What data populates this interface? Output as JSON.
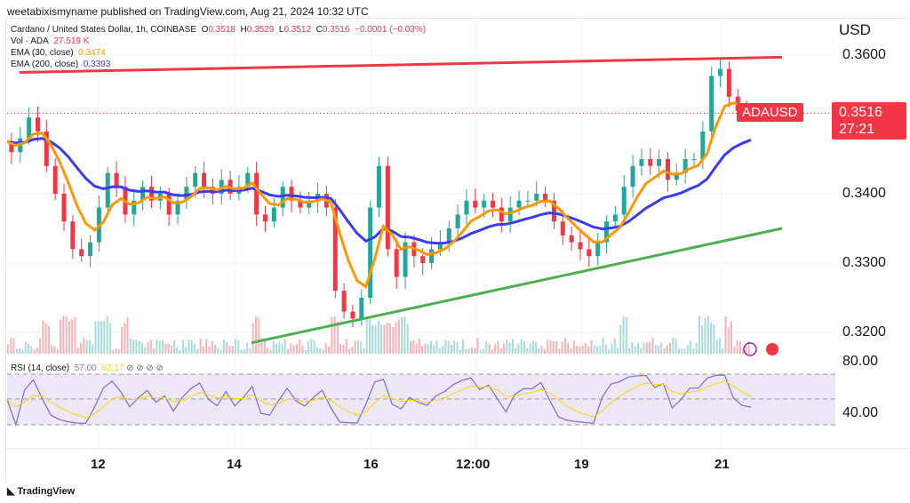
{
  "header": {
    "published": "weetabixismyname published on TradingView.com, Aug 21, 2024 10:32 UTC"
  },
  "legend": {
    "symbol": "Cardano / United States Dollar, 1h, COINBASE",
    "o_label": "O",
    "o": "0.3518",
    "h_label": "H",
    "h": "0.3529",
    "l_label": "L",
    "l": "0.3512",
    "c_label": "C",
    "c": "0.3516",
    "change": "−0.0001 (−0.03%)",
    "vol_label": "Vol · ADA",
    "vol": "27.519 K",
    "ema30_label": "EMA (30, close)",
    "ema30": "0.3474",
    "ema200_label": "EMA (200, close)",
    "ema200": "0.3393"
  },
  "rsi": {
    "label": "RSI (14, close)",
    "value": "57.00",
    "ma": "62.17",
    "levels": [
      "80.00",
      "40.00"
    ]
  },
  "axis": {
    "currency": "USD",
    "price_ticks": [
      "0.3600",
      "0.3400",
      "0.3300",
      "0.3200"
    ],
    "time_ticks": [
      "12",
      "14",
      "16",
      "12:00",
      "19",
      "21"
    ]
  },
  "last": {
    "symbol": "ADAUSD",
    "price": "0.3516",
    "countdown": "27:21"
  },
  "colors": {
    "up": "#26a69a",
    "down": "#f23645",
    "ema30": "#ff9800",
    "ema200": "#3b3bf0",
    "resistance": "#f23645",
    "support": "#4caf50",
    "rsi": "#8e6fd6",
    "rsi_ma": "#f5d800"
  },
  "brand": "TradingView",
  "chart_data": {
    "type": "candlestick",
    "ylim": [
      0.3185,
      0.3615
    ],
    "closes": [
      0.3475,
      0.346,
      0.348,
      0.351,
      0.349,
      0.344,
      0.34,
      0.336,
      0.332,
      0.331,
      0.333,
      0.338,
      0.343,
      0.341,
      0.337,
      0.339,
      0.341,
      0.339,
      0.34,
      0.337,
      0.339,
      0.341,
      0.343,
      0.341,
      0.34,
      0.342,
      0.34,
      0.341,
      0.343,
      0.337,
      0.336,
      0.338,
      0.341,
      0.339,
      0.338,
      0.339,
      0.34,
      0.338,
      0.326,
      0.323,
      0.322,
      0.325,
      0.338,
      0.344,
      0.332,
      0.328,
      0.333,
      0.331,
      0.33,
      0.332,
      0.333,
      0.335,
      0.337,
      0.339,
      0.338,
      0.339,
      0.338,
      0.336,
      0.338,
      0.339,
      0.339,
      0.34,
      0.339,
      0.336,
      0.334,
      0.333,
      0.332,
      0.331,
      0.333,
      0.336,
      0.337,
      0.341,
      0.344,
      0.345,
      0.344,
      0.345,
      0.342,
      0.343,
      0.345,
      0.345,
      0.349,
      0.357,
      0.358,
      0.354,
      0.352,
      0.3516
    ],
    "resistance": [
      0.3575,
      0.3597
    ],
    "support": [
      0.3185,
      0.335
    ]
  }
}
